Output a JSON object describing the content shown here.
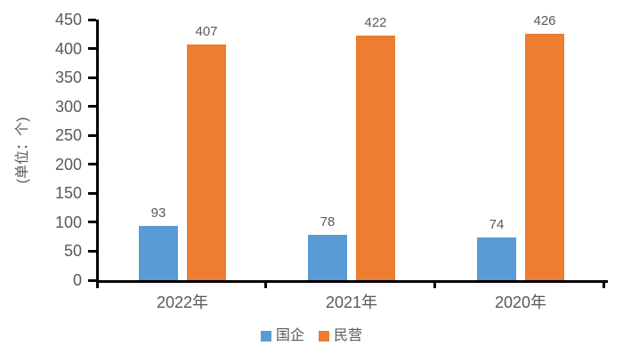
{
  "chart_data": {
    "type": "bar",
    "title": "",
    "categories": [
      "2022年",
      "2021年",
      "2020年"
    ],
    "series": [
      {
        "name": "国企",
        "color": "#5B9BD5",
        "values": [
          93,
          78,
          74
        ]
      },
      {
        "name": "民营",
        "color": "#ED7D31",
        "values": [
          407,
          422,
          426
        ]
      }
    ],
    "xlabel": "",
    "ylabel": "(单位：个)",
    "ylim": [
      0,
      450
    ],
    "yticks": [
      0,
      50,
      100,
      150,
      200,
      250,
      300,
      350,
      400,
      450
    ],
    "grid": false,
    "legend_position": "bottom",
    "data_labels": true,
    "colors": {
      "axis_line": "#000000",
      "tick_text": "#595959",
      "data_label_text": "#595959",
      "background": "#FFFFFF"
    }
  }
}
